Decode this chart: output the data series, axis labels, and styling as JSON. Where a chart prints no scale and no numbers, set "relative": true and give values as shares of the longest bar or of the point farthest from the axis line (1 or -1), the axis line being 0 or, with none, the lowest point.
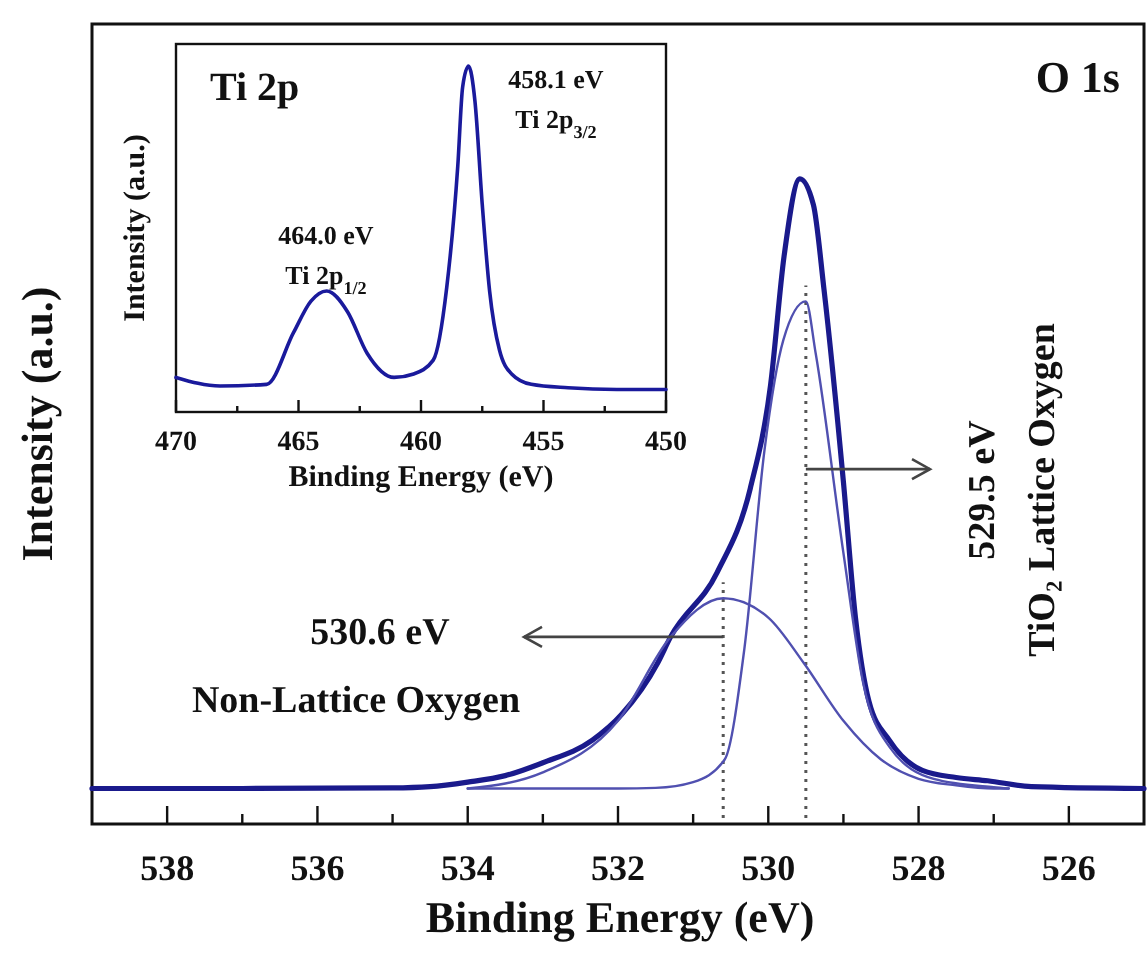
{
  "chart_data": [
    {
      "type": "line",
      "title": "O 1s",
      "xlabel": "Binding Energy (eV)",
      "ylabel": "Intensity (a.u.)",
      "relative": true,
      "line_style": "solid",
      "xlim": [
        539,
        525
      ],
      "xticks": [
        538,
        {
          "value": 537,
          "label": null
        },
        536,
        {
          "value": 535,
          "label": null
        },
        534,
        {
          "value": 533,
          "label": null
        },
        532,
        {
          "value": 531,
          "label": null
        },
        530,
        {
          "value": 529,
          "label": null
        },
        528,
        {
          "value": 527,
          "label": null
        },
        526
      ],
      "series": [
        {
          "color": "#1a1a8c",
          "x": [
            539,
            537,
            535,
            534.5,
            534,
            533.5,
            533,
            532.34,
            531.95,
            531.47,
            531.3,
            530.68,
            530.24,
            529.97,
            529.79,
            529.58,
            529.4,
            529.26,
            529.0,
            528.84,
            528.66,
            528.39,
            527.95,
            527.5,
            527.08,
            526.5,
            525
          ],
          "values": [
            0.055,
            0.055,
            0.056,
            0.058,
            0.065,
            0.075,
            0.095,
            0.13,
            0.17,
            0.25,
            0.29,
            0.39,
            0.52,
            0.68,
            0.88,
            1.0,
            0.96,
            0.83,
            0.53,
            0.32,
            0.19,
            0.13,
            0.083,
            0.072,
            0.067,
            0.058,
            0.055
          ]
        },
        {
          "color": "#5050b0",
          "x": [
            534,
            532,
            531.5,
            531,
            530.58,
            530.32,
            530.05,
            529.8,
            529.5,
            529.37,
            529.0,
            528.74,
            528.39,
            527.8,
            527,
            526.8
          ],
          "values": [
            0.055,
            0.055,
            0.056,
            0.065,
            0.1,
            0.27,
            0.58,
            0.75,
            0.81,
            0.73,
            0.42,
            0.22,
            0.12,
            0.07,
            0.057,
            0.055
          ]
        },
        {
          "color": "#5050b0",
          "x": [
            534,
            533,
            532,
            531.3,
            530.6,
            530,
            529.53,
            529,
            528.5,
            528,
            527.5,
            527,
            526.8
          ],
          "values": [
            0.055,
            0.08,
            0.16,
            0.29,
            0.35,
            0.32,
            0.25,
            0.16,
            0.1,
            0.07,
            0.06,
            0.055,
            0.055
          ]
        }
      ],
      "ref_lines": [
        {
          "axis": "x",
          "value": 530.6,
          "line_style": "dotted"
        },
        {
          "axis": "x",
          "value": 529.5,
          "line_style": "dotted"
        }
      ],
      "annotations": [
        {
          "text": "530.6 eV\nNon-Lattice Oxygen",
          "x": 530.6,
          "y": 0.29
        },
        {
          "text": "529.5 eV\nTiO₂ Lattice Oxygen",
          "x": 529.5,
          "y": 0.55
        }
      ]
    },
    {
      "type": "line",
      "title": "Ti 2p",
      "xlabel": "Binding Energy (eV)",
      "ylabel": "Intensity (a.u.)",
      "relative": true,
      "line_style": "solid",
      "xlim": [
        470,
        450
      ],
      "xticks": [
        470,
        {
          "value": 467.5,
          "label": null
        },
        465,
        {
          "value": 462.5,
          "label": null
        },
        460,
        {
          "value": 457.5,
          "label": null
        },
        455,
        {
          "value": 452.5,
          "label": null
        },
        450
      ],
      "series": [
        {
          "color": "#1a1a9c",
          "x": [
            470,
            468.2,
            466.3,
            465.2,
            464.5,
            463.85,
            463.0,
            462.2,
            461.1,
            460.3,
            459.5,
            458.95,
            458.5,
            458.3,
            458.06,
            457.8,
            457.5,
            457.2,
            456.8,
            456.3,
            455.5,
            454,
            452,
            450
          ],
          "values": [
            0.1,
            0.075,
            0.08,
            0.23,
            0.32,
            0.35,
            0.29,
            0.17,
            0.1,
            0.11,
            0.15,
            0.36,
            0.71,
            0.94,
            1.0,
            0.9,
            0.6,
            0.35,
            0.18,
            0.11,
            0.08,
            0.07,
            0.065,
            0.065
          ]
        }
      ],
      "annotations": [
        {
          "text": "464.0 eV\nTi 2p$_{1/2}$",
          "x": 464.0,
          "y": 0.35
        },
        {
          "text": "458.1 eV\nTi 2p$_{3/2}$",
          "x": 458.1,
          "y": 1.0
        }
      ]
    }
  ]
}
